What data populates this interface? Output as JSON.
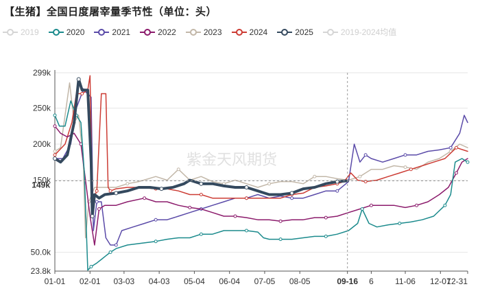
{
  "title": "【生猪】全国日度屠宰量季节性（单位：头）",
  "watermark": "紫金天风期货",
  "legend": [
    {
      "name": "2019",
      "color": "#d5d5d5",
      "muted": true
    },
    {
      "name": "2020",
      "color": "#1a8a8c",
      "muted": false
    },
    {
      "name": "2021",
      "color": "#5a4aa8",
      "muted": false
    },
    {
      "name": "2022",
      "color": "#8b1a6b",
      "muted": false
    },
    {
      "name": "2023",
      "color": "#c2b7a8",
      "muted": false
    },
    {
      "name": "2024",
      "color": "#cc3b33",
      "muted": false
    },
    {
      "name": "2025",
      "color": "#34495e",
      "muted": false
    },
    {
      "name": "2019-2024均值",
      "color": "#d5d5d5",
      "muted": true
    }
  ],
  "chart_data": {
    "type": "line",
    "title": "【生猪】全国日度屠宰量季节性（单位：头）",
    "ylim": [
      23800,
      299000
    ],
    "y_ticks": [
      {
        "label": "23.8k",
        "value": 23800
      },
      {
        "label": "50.0k",
        "value": 50000
      },
      {
        "label": "149k",
        "value": 149000,
        "highlight": true
      },
      {
        "label": "150k",
        "value": 150000
      },
      {
        "label": "200k",
        "value": 200000
      },
      {
        "label": "250k",
        "value": 250000
      },
      {
        "label": "299k",
        "value": 299000
      }
    ],
    "x_ticks": [
      {
        "label": "01-01",
        "doy": 1
      },
      {
        "label": "02-01",
        "doy": 32
      },
      {
        "label": "03-03",
        "doy": 62
      },
      {
        "label": "04-03",
        "doy": 93
      },
      {
        "label": "05-04",
        "doy": 124
      },
      {
        "label": "06-04",
        "doy": 155
      },
      {
        "label": "07-05",
        "doy": 186
      },
      {
        "label": "08-05",
        "doy": 217
      },
      {
        "label": "09-16",
        "doy": 259,
        "highlight": true
      },
      {
        "label": "6",
        "doy": 280
      },
      {
        "label": "11-06",
        "doy": 310
      },
      {
        "label": "12-07",
        "doy": 341
      },
      {
        "label": "12-31",
        "doy": 365
      }
    ],
    "series": [
      {
        "name": "2023",
        "color": "#c2b7a8",
        "width": 1.5,
        "points": [
          [
            1,
            190000
          ],
          [
            6,
            195000
          ],
          [
            10,
            240000
          ],
          [
            14,
            285000
          ],
          [
            18,
            230000
          ],
          [
            22,
            240000
          ],
          [
            26,
            180000
          ],
          [
            28,
            70000
          ],
          [
            31,
            120000
          ],
          [
            36,
            140000
          ],
          [
            45,
            140000
          ],
          [
            55,
            140000
          ],
          [
            65,
            145000
          ],
          [
            75,
            148000
          ],
          [
            90,
            155000
          ],
          [
            100,
            150000
          ],
          [
            110,
            165000
          ],
          [
            120,
            150000
          ],
          [
            130,
            155000
          ],
          [
            140,
            148000
          ],
          [
            150,
            145000
          ],
          [
            160,
            150000
          ],
          [
            170,
            145000
          ],
          [
            180,
            140000
          ],
          [
            190,
            145000
          ],
          [
            200,
            148000
          ],
          [
            210,
            148000
          ],
          [
            220,
            145000
          ],
          [
            230,
            155000
          ],
          [
            240,
            155000
          ],
          [
            250,
            152000
          ],
          [
            260,
            150000
          ],
          [
            270,
            155000
          ],
          [
            280,
            165000
          ],
          [
            290,
            165000
          ],
          [
            300,
            170000
          ],
          [
            310,
            168000
          ],
          [
            320,
            165000
          ],
          [
            330,
            175000
          ],
          [
            340,
            180000
          ],
          [
            350,
            190000
          ],
          [
            358,
            200000
          ],
          [
            365,
            195000
          ]
        ]
      },
      {
        "name": "2021",
        "color": "#5a4aa8",
        "width": 1.5,
        "points": [
          [
            1,
            180000
          ],
          [
            8,
            180000
          ],
          [
            15,
            200000
          ],
          [
            20,
            250000
          ],
          [
            26,
            275000
          ],
          [
            30,
            270000
          ],
          [
            33,
            265000
          ],
          [
            35,
            80000
          ],
          [
            38,
            120000
          ],
          [
            42,
            120000
          ],
          [
            46,
            70000
          ],
          [
            50,
            60000
          ],
          [
            55,
            60000
          ],
          [
            60,
            80000
          ],
          [
            70,
            85000
          ],
          [
            80,
            90000
          ],
          [
            90,
            95000
          ],
          [
            100,
            95000
          ],
          [
            110,
            100000
          ],
          [
            120,
            105000
          ],
          [
            130,
            110000
          ],
          [
            140,
            115000
          ],
          [
            150,
            120000
          ],
          [
            160,
            125000
          ],
          [
            170,
            125000
          ],
          [
            180,
            130000
          ],
          [
            190,
            125000
          ],
          [
            200,
            128000
          ],
          [
            210,
            125000
          ],
          [
            220,
            125000
          ],
          [
            230,
            130000
          ],
          [
            240,
            135000
          ],
          [
            250,
            135000
          ],
          [
            260,
            148000
          ],
          [
            265,
            200000
          ],
          [
            270,
            175000
          ],
          [
            275,
            185000
          ],
          [
            280,
            180000
          ],
          [
            290,
            175000
          ],
          [
            300,
            180000
          ],
          [
            310,
            185000
          ],
          [
            320,
            185000
          ],
          [
            330,
            190000
          ],
          [
            340,
            192000
          ],
          [
            350,
            195000
          ],
          [
            358,
            215000
          ],
          [
            362,
            240000
          ],
          [
            365,
            230000
          ]
        ]
      },
      {
        "name": "2024",
        "color": "#cc3b33",
        "width": 1.5,
        "points": [
          [
            1,
            185000
          ],
          [
            10,
            200000
          ],
          [
            16,
            230000
          ],
          [
            20,
            270000
          ],
          [
            25,
            270000
          ],
          [
            30,
            275000
          ],
          [
            32,
            295000
          ],
          [
            34,
            120000
          ],
          [
            38,
            135000
          ],
          [
            42,
            270000
          ],
          [
            46,
            270000
          ],
          [
            48,
            140000
          ],
          [
            50,
            135000
          ],
          [
            55,
            138000
          ],
          [
            65,
            140000
          ],
          [
            75,
            140000
          ],
          [
            90,
            138000
          ],
          [
            100,
            138000
          ],
          [
            110,
            135000
          ],
          [
            120,
            130000
          ],
          [
            130,
            130000
          ],
          [
            140,
            125000
          ],
          [
            150,
            125000
          ],
          [
            160,
            125000
          ],
          [
            170,
            125000
          ],
          [
            180,
            125000
          ],
          [
            190,
            125000
          ],
          [
            200,
            125000
          ],
          [
            210,
            130000
          ],
          [
            220,
            132000
          ],
          [
            230,
            140000
          ],
          [
            240,
            142000
          ],
          [
            250,
            145000
          ],
          [
            256,
            148000
          ],
          [
            262,
            160000
          ],
          [
            268,
            150000
          ],
          [
            275,
            148000
          ],
          [
            285,
            150000
          ],
          [
            295,
            155000
          ],
          [
            305,
            160000
          ],
          [
            315,
            165000
          ],
          [
            325,
            170000
          ],
          [
            335,
            175000
          ],
          [
            345,
            180000
          ],
          [
            355,
            195000
          ],
          [
            365,
            190000
          ]
        ]
      },
      {
        "name": "2022",
        "color": "#8b1a6b",
        "width": 1.5,
        "points": [
          [
            1,
            225000
          ],
          [
            6,
            215000
          ],
          [
            12,
            210000
          ],
          [
            18,
            215000
          ],
          [
            24,
            200000
          ],
          [
            28,
            150000
          ],
          [
            32,
            100000
          ],
          [
            36,
            60000
          ],
          [
            40,
            110000
          ],
          [
            45,
            115000
          ],
          [
            55,
            115000
          ],
          [
            65,
            120000
          ],
          [
            80,
            125000
          ],
          [
            90,
            120000
          ],
          [
            100,
            120000
          ],
          [
            110,
            115000
          ],
          [
            120,
            112000
          ],
          [
            130,
            110000
          ],
          [
            140,
            105000
          ],
          [
            150,
            100000
          ],
          [
            160,
            100000
          ],
          [
            170,
            98000
          ],
          [
            180,
            95000
          ],
          [
            190,
            95000
          ],
          [
            200,
            93000
          ],
          [
            210,
            95000
          ],
          [
            220,
            95000
          ],
          [
            230,
            98000
          ],
          [
            240,
            98000
          ],
          [
            250,
            100000
          ],
          [
            260,
            105000
          ],
          [
            270,
            110000
          ],
          [
            280,
            115000
          ],
          [
            290,
            115000
          ],
          [
            300,
            115000
          ],
          [
            310,
            112000
          ],
          [
            320,
            115000
          ],
          [
            330,
            120000
          ],
          [
            340,
            130000
          ],
          [
            348,
            140000
          ],
          [
            355,
            160000
          ],
          [
            360,
            175000
          ],
          [
            365,
            180000
          ]
        ]
      },
      {
        "name": "2020",
        "color": "#1a8a8c",
        "width": 1.5,
        "points": [
          [
            1,
            240000
          ],
          [
            5,
            225000
          ],
          [
            10,
            225000
          ],
          [
            15,
            260000
          ],
          [
            20,
            240000
          ],
          [
            24,
            230000
          ],
          [
            27,
            160000
          ],
          [
            30,
            25000
          ],
          [
            33,
            30000
          ],
          [
            38,
            35000
          ],
          [
            42,
            40000
          ],
          [
            46,
            45000
          ],
          [
            50,
            50000
          ],
          [
            55,
            55000
          ],
          [
            65,
            60000
          ],
          [
            75,
            62000
          ],
          [
            90,
            65000
          ],
          [
            100,
            68000
          ],
          [
            110,
            70000
          ],
          [
            120,
            70000
          ],
          [
            130,
            75000
          ],
          [
            140,
            75000
          ],
          [
            150,
            80000
          ],
          [
            160,
            80000
          ],
          [
            170,
            80000
          ],
          [
            180,
            78000
          ],
          [
            185,
            70000
          ],
          [
            190,
            68000
          ],
          [
            200,
            68000
          ],
          [
            210,
            68000
          ],
          [
            220,
            70000
          ],
          [
            230,
            72000
          ],
          [
            240,
            72000
          ],
          [
            250,
            75000
          ],
          [
            260,
            80000
          ],
          [
            268,
            90000
          ],
          [
            272,
            110000
          ],
          [
            278,
            90000
          ],
          [
            285,
            85000
          ],
          [
            295,
            88000
          ],
          [
            305,
            90000
          ],
          [
            315,
            92000
          ],
          [
            325,
            95000
          ],
          [
            335,
            100000
          ],
          [
            345,
            115000
          ],
          [
            350,
            130000
          ],
          [
            354,
            175000
          ],
          [
            360,
            180000
          ],
          [
            365,
            175000
          ]
        ]
      },
      {
        "name": "2025",
        "color": "#34495e",
        "width": 4,
        "points": [
          [
            1,
            180000
          ],
          [
            6,
            175000
          ],
          [
            12,
            185000
          ],
          [
            18,
            230000
          ],
          [
            22,
            290000
          ],
          [
            25,
            275000
          ],
          [
            30,
            275000
          ],
          [
            33,
            175000
          ],
          [
            34,
            100000
          ],
          [
            36,
            130000
          ],
          [
            40,
            125000
          ],
          [
            45,
            130000
          ],
          [
            55,
            132000
          ],
          [
            65,
            135000
          ],
          [
            75,
            140000
          ],
          [
            85,
            140000
          ],
          [
            95,
            138000
          ],
          [
            105,
            140000
          ],
          [
            115,
            145000
          ],
          [
            120,
            150000
          ],
          [
            130,
            145000
          ],
          [
            140,
            145000
          ],
          [
            150,
            142000
          ],
          [
            160,
            140000
          ],
          [
            170,
            140000
          ],
          [
            180,
            135000
          ],
          [
            190,
            130000
          ],
          [
            200,
            130000
          ],
          [
            210,
            132000
          ],
          [
            220,
            138000
          ],
          [
            230,
            140000
          ],
          [
            240,
            145000
          ],
          [
            250,
            148000
          ],
          [
            259,
            149000
          ]
        ]
      }
    ]
  }
}
